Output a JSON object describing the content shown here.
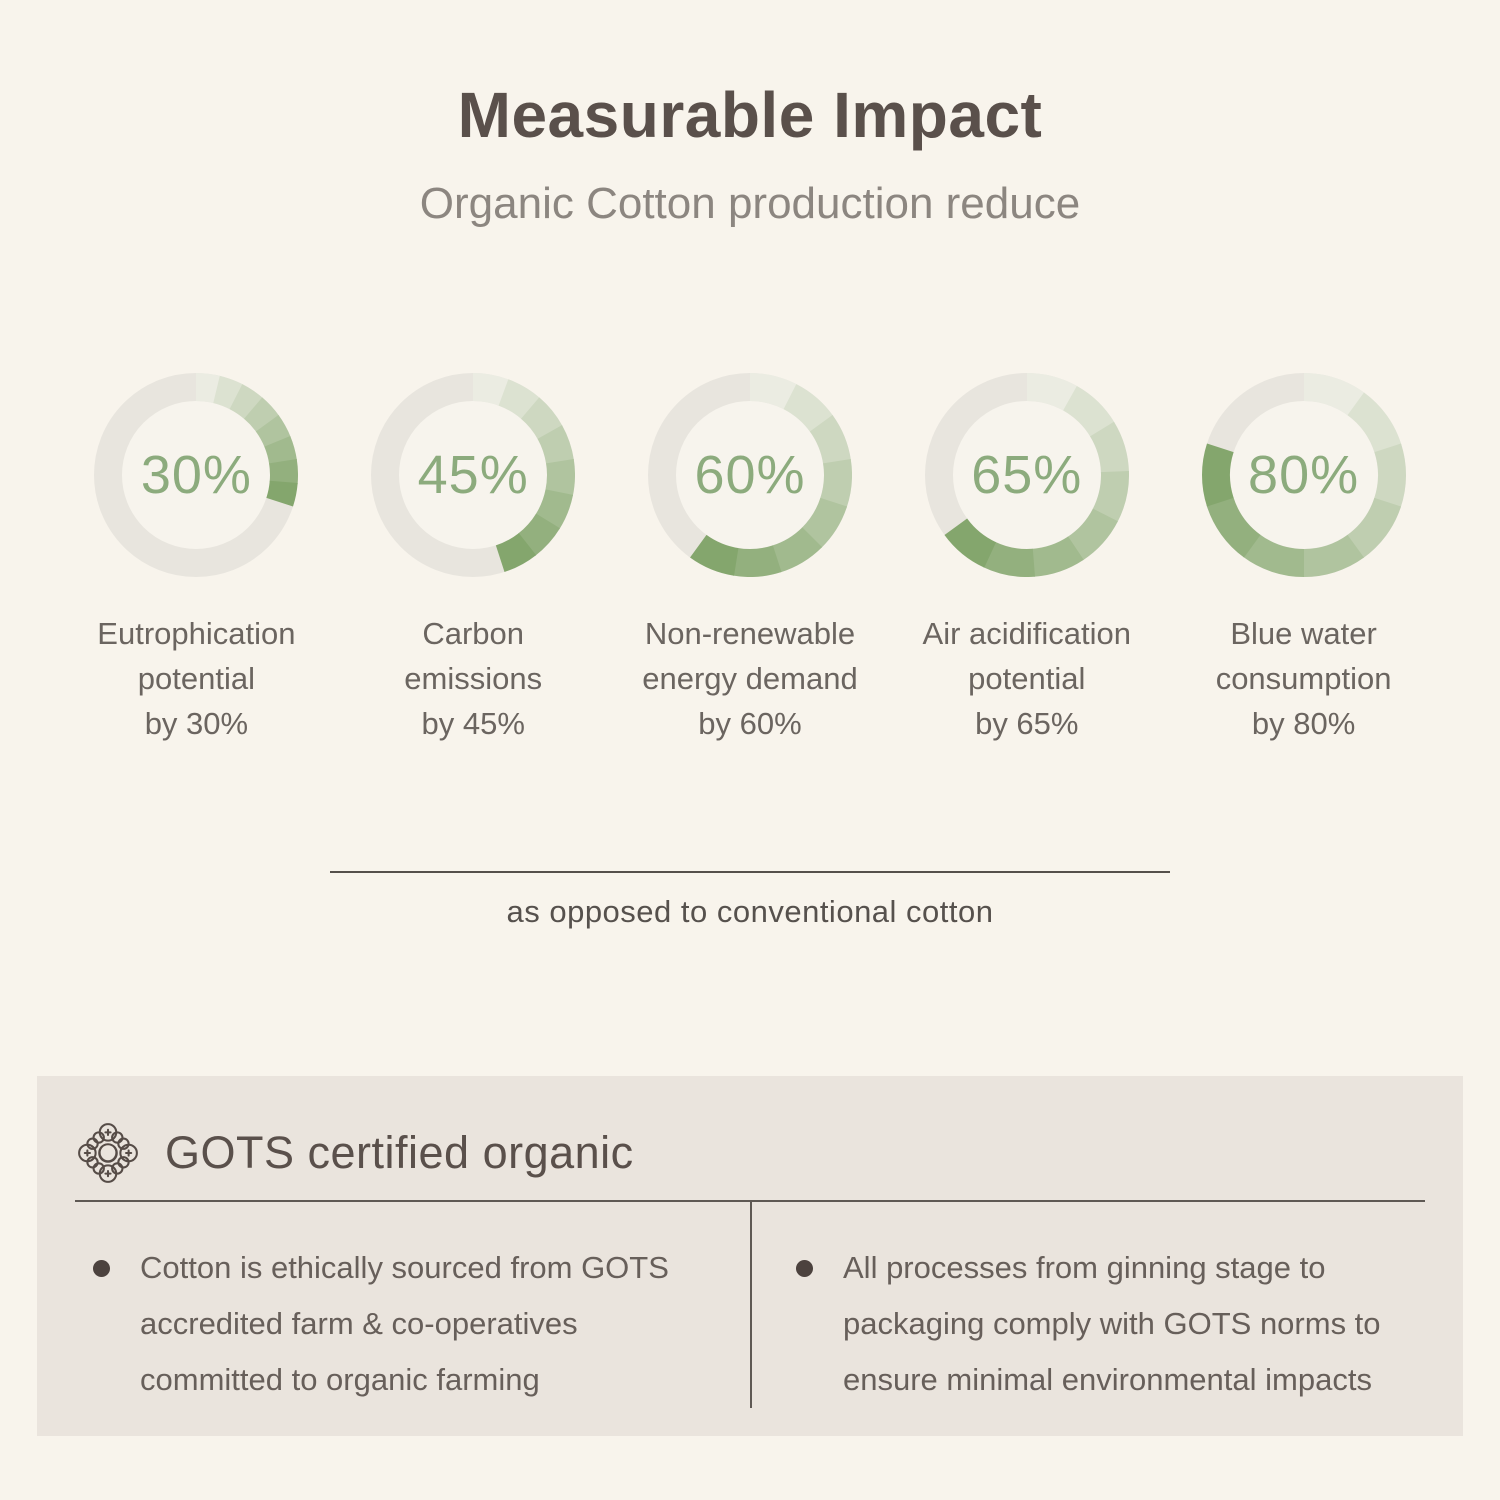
{
  "chart_data": {
    "type": "pie",
    "variant": "donut-gauge-row",
    "title": "Measurable Impact",
    "subtitle": "Organic Cotton production reduce",
    "note": "as opposed to conventional cotton",
    "unit": "%",
    "segments_per_arc": 8,
    "items": [
      {
        "label": "Eutrophication potential by 30%",
        "value": 30,
        "pct_label": "30%",
        "label_lines": [
          "Eutrophication",
          "potential",
          "by 30%"
        ]
      },
      {
        "label": "Carbon emissions by 45%",
        "value": 45,
        "pct_label": "45%",
        "label_lines": [
          "Carbon",
          "emissions",
          "by 45%"
        ]
      },
      {
        "label": "Non-renewable energy demand by 60%",
        "value": 60,
        "pct_label": "60%",
        "label_lines": [
          "Non-renewable",
          "energy demand",
          "by 60%"
        ]
      },
      {
        "label": "Air acidification potential by 65%",
        "value": 65,
        "pct_label": "65%",
        "label_lines": [
          "Air acidification",
          "potential",
          "by 65%"
        ]
      },
      {
        "label": "Blue water consumption by 80%",
        "value": 80,
        "pct_label": "80%",
        "label_lines": [
          "Blue water",
          "consumption",
          "by 80%"
        ]
      }
    ],
    "colors": {
      "ring_base": "#e8e5de",
      "arc_start": "#ebece2",
      "arc_end": "#84a66d",
      "pct_text": "#8cab7d",
      "page_background": "#f8f4ec",
      "panel_background": "#eae4dd"
    }
  },
  "gots": {
    "icon": "cotton-knot-icon",
    "heading": "GOTS certified organic",
    "bullets": [
      "Cotton is ethically sourced from GOTS accredited farm & co-operatives committed to organic farming",
      "All processes from ginning stage to packaging comply with GOTS norms to ensure minimal environmental impacts"
    ]
  }
}
